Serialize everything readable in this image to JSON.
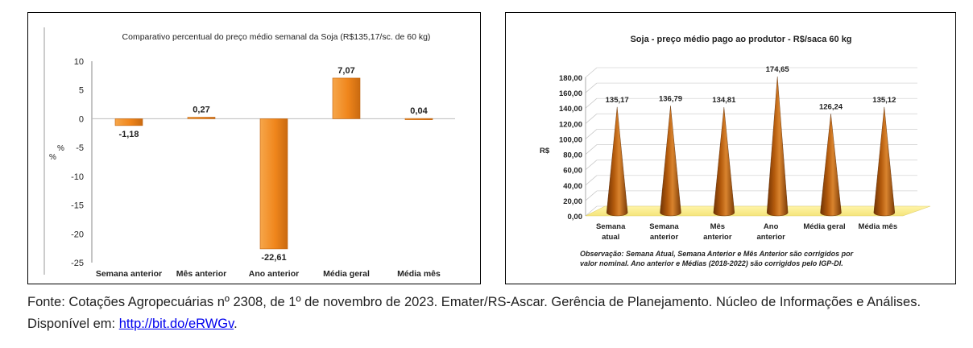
{
  "chart_data": [
    {
      "type": "bar",
      "title": "Comparativo percentual do preço médio semanal da Soja (R$135,17/sc. de 60 kg)",
      "ylabel": "%",
      "ylabel_secondary": "%",
      "ylim": [
        -25,
        10
      ],
      "yticks": [
        10,
        5,
        0,
        -5,
        -10,
        -15,
        -20,
        -25
      ],
      "categories": [
        "Semana anterior",
        "Mês anterior",
        "Ano anterior",
        "Média geral",
        "Média mês"
      ],
      "values": [
        -1.18,
        0.27,
        -22.61,
        7.07,
        0.04
      ],
      "value_labels": [
        "-1,18",
        "0,27",
        "-22,61",
        "7,07",
        "0,04"
      ],
      "bar_color": "#f0861c",
      "grid": false
    },
    {
      "type": "bar",
      "style": "3d-cone",
      "title": "Soja - preço médio pago ao produtor - R$/saca 60 kg",
      "ylabel": "R$",
      "ylim": [
        0,
        180
      ],
      "yticks": [
        "180,00",
        "160,00",
        "140,00",
        "120,00",
        "100,00",
        "80,00",
        "60,00",
        "40,00",
        "20,00",
        "0,00"
      ],
      "ytick_values": [
        180,
        160,
        140,
        120,
        100,
        80,
        60,
        40,
        20,
        0
      ],
      "categories": [
        [
          "Semana",
          "atual"
        ],
        [
          "Semana",
          "anterior"
        ],
        [
          "Mês",
          "anterior"
        ],
        [
          "Ano",
          "anterior"
        ],
        [
          "Média geral"
        ],
        [
          "Média mês"
        ]
      ],
      "values": [
        135.17,
        136.79,
        134.81,
        174.65,
        126.24,
        135.12
      ],
      "value_labels": [
        "135,17",
        "136,79",
        "134,81",
        "174,65",
        "126,24",
        "135,12"
      ],
      "bar_color": "#b35a0c",
      "grid": true,
      "note": [
        "Observação: Semana Atual, Semana Anterior e Mês Anterior são corrigidos por",
        "valor nominal. Ano anterior e Médias (2018-2022) são corrigidos pelo IGP-DI."
      ]
    }
  ],
  "caption": {
    "text": "Fonte: Cotações Agropecuárias nº 2308, de 1º de novembro de 2023. Emater/RS-Ascar. Gerência de Planejamento. Núcleo de Informações e Análises. Disponível em: ",
    "link": "http://bit.do/eRWGv",
    "end": "."
  }
}
